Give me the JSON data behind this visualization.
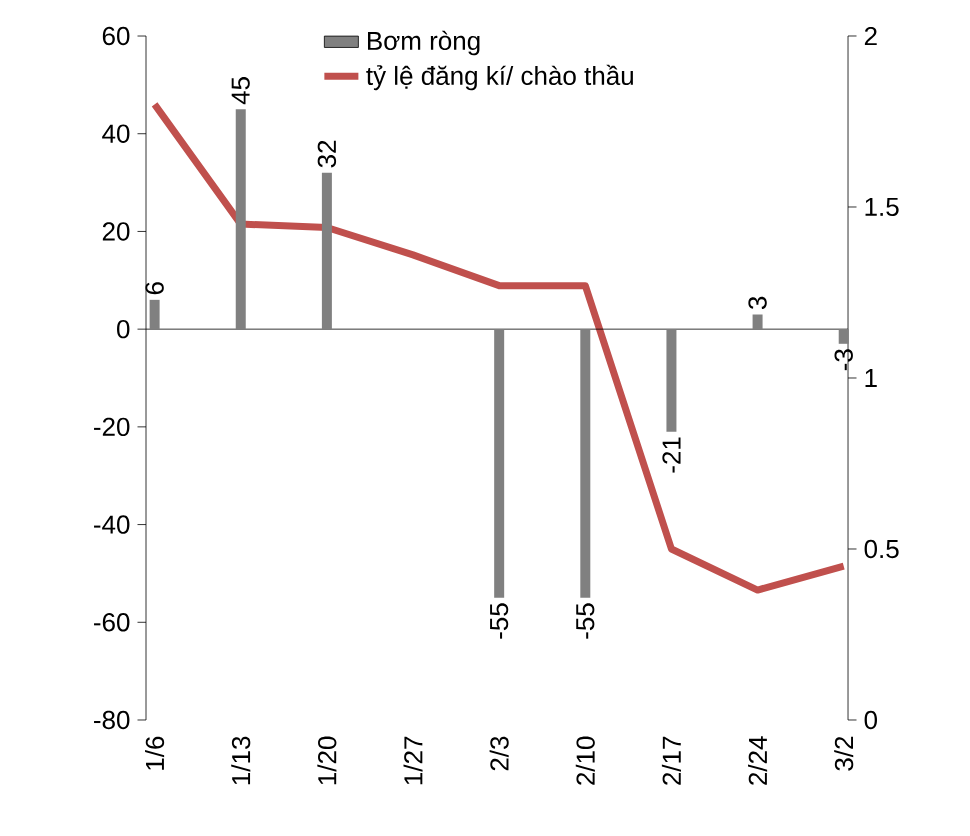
{
  "chart_data": {
    "type": "bar",
    "categories": [
      "1/6",
      "1/13",
      "1/20",
      "1/27",
      "2/3",
      "2/10",
      "2/17",
      "2/24",
      "3/2"
    ],
    "legend": "top",
    "ylim": [
      -80,
      60
    ],
    "yticks": [
      -80,
      -60,
      -40,
      -20,
      0,
      20,
      40,
      60
    ],
    "y2lim": [
      0,
      2
    ],
    "y2ticks": [
      0,
      0.5,
      1,
      1.5,
      2
    ],
    "series": [
      {
        "name": "Bơm ròng",
        "color": "#808080",
        "values": [
          6,
          45,
          32,
          null,
          -55,
          -55,
          -21,
          3,
          -3
        ],
        "value_labels": [
          "6",
          "45",
          "32",
          null,
          "-55",
          "-55",
          "-21",
          "3",
          "-3"
        ]
      },
      {
        "name": "tỷ lệ đăng kí/ chào thầu",
        "type": "line",
        "axis": "y2",
        "color": "#c0504d",
        "values": [
          1.8,
          1.45,
          1.44,
          1.36,
          1.27,
          1.27,
          0.5,
          0.38,
          0.45
        ]
      }
    ]
  }
}
